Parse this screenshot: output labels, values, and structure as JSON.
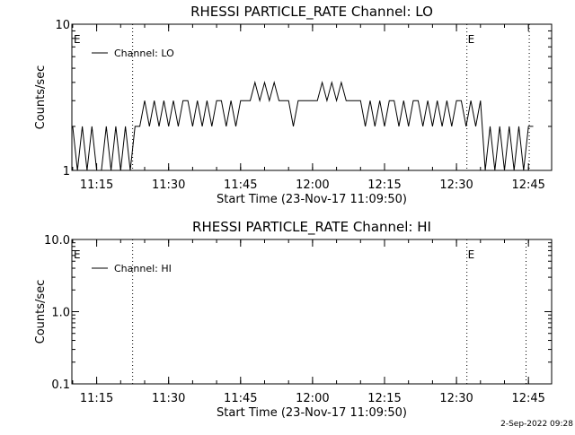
{
  "chart_data": [
    {
      "type": "line",
      "title": "RHESSI PARTICLE_RATE Channel: LO",
      "xlabel": "Start Time (23-Nov-17 11:09:50)",
      "ylabel": "Counts/sec",
      "yscale": "log",
      "ylim": [
        1,
        10
      ],
      "yticks": [
        1,
        10
      ],
      "ytick_labels": [
        "1",
        "10"
      ],
      "xticks": [
        "11:15",
        "11:30",
        "11:45",
        "12:00",
        "12:15",
        "12:30",
        "12:45"
      ],
      "xlim": [
        "11:09:50",
        "12:49:50"
      ],
      "grid": false,
      "legend_position": "top-left",
      "series": [
        {
          "name": "Channel: LO",
          "x": [
            "11:10",
            "11:11",
            "11:12",
            "11:13",
            "11:14",
            "11:15",
            "11:16",
            "11:17",
            "11:18",
            "11:19",
            "11:20",
            "11:21",
            "11:22",
            "11:23",
            "11:24",
            "11:25",
            "11:26",
            "11:27",
            "11:28",
            "11:29",
            "11:30",
            "11:31",
            "11:32",
            "11:33",
            "11:34",
            "11:35",
            "11:36",
            "11:37",
            "11:38",
            "11:39",
            "11:40",
            "11:41",
            "11:42",
            "11:43",
            "11:44",
            "11:45",
            "11:46",
            "11:47",
            "11:48",
            "11:49",
            "11:50",
            "11:51",
            "11:52",
            "11:53",
            "11:54",
            "11:55",
            "11:56",
            "11:57",
            "11:58",
            "11:59",
            "12:00",
            "12:01",
            "12:02",
            "12:03",
            "12:04",
            "12:05",
            "12:06",
            "12:07",
            "12:08",
            "12:09",
            "12:10",
            "12:11",
            "12:12",
            "12:13",
            "12:14",
            "12:15",
            "12:16",
            "12:17",
            "12:18",
            "12:19",
            "12:20",
            "12:21",
            "12:22",
            "12:23",
            "12:24",
            "12:25",
            "12:26",
            "12:27",
            "12:28",
            "12:29",
            "12:30",
            "12:31",
            "12:32",
            "12:33",
            "12:34",
            "12:35",
            "12:36",
            "12:37",
            "12:38",
            "12:39",
            "12:40",
            "12:41",
            "12:42",
            "12:43",
            "12:44",
            "12:45",
            "12:46"
          ],
          "y": [
            2,
            1,
            2,
            1,
            2,
            1,
            1,
            2,
            1,
            2,
            1,
            2,
            1,
            2,
            2,
            3,
            2,
            3,
            2,
            3,
            2,
            3,
            2,
            3,
            3,
            2,
            3,
            2,
            3,
            2,
            3,
            3,
            2,
            3,
            2,
            3,
            3,
            3,
            4,
            3,
            4,
            3,
            4,
            3,
            3,
            3,
            2,
            3,
            3,
            3,
            3,
            3,
            4,
            3,
            4,
            3,
            4,
            3,
            3,
            3,
            3,
            2,
            3,
            2,
            3,
            2,
            3,
            3,
            2,
            3,
            2,
            3,
            3,
            2,
            3,
            2,
            3,
            2,
            3,
            2,
            3,
            3,
            2,
            3,
            2,
            3,
            1,
            2,
            1,
            2,
            1,
            2,
            1,
            2,
            1,
            2,
            2
          ]
        }
      ],
      "markers": [
        {
          "label": "E",
          "time": "11:09:50"
        },
        {
          "label": "E",
          "time": "12:32:10"
        }
      ],
      "vlines": [
        "11:22:30",
        "12:32:10",
        "12:45:10"
      ]
    },
    {
      "type": "line",
      "title": "RHESSI PARTICLE_RATE Channel: HI",
      "xlabel": "Start Time (23-Nov-17 11:09:50)",
      "ylabel": "Counts/sec",
      "yscale": "log",
      "ylim": [
        0.1,
        10
      ],
      "yticks": [
        0.1,
        1,
        10
      ],
      "ytick_labels": [
        "0.1",
        "1.0",
        "10.0"
      ],
      "xticks": [
        "11:15",
        "11:30",
        "11:45",
        "12:00",
        "12:15",
        "12:30",
        "12:45"
      ],
      "xlim": [
        "11:09:50",
        "12:49:50"
      ],
      "grid": false,
      "legend_position": "top-left",
      "series": [
        {
          "name": "Channel: HI",
          "x": [],
          "y": []
        }
      ],
      "markers": [
        {
          "label": "E",
          "time": "11:09:50"
        },
        {
          "label": "E",
          "time": "12:32:10"
        }
      ],
      "vlines": [
        "11:22:30",
        "12:32:10",
        "12:44:30"
      ]
    }
  ],
  "footer": {
    "timestamp": "2-Sep-2022 09:28"
  }
}
